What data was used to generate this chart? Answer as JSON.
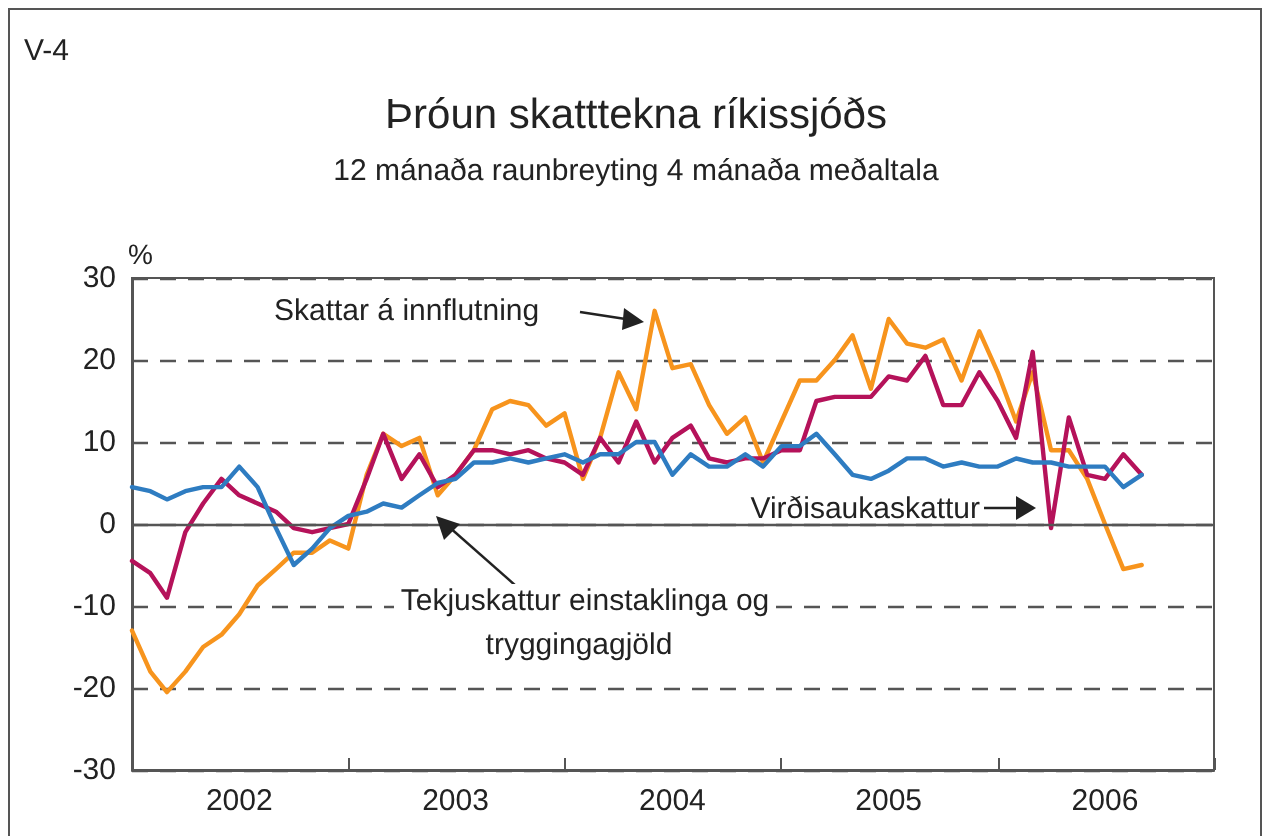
{
  "chart_data": {
    "type": "line",
    "title": "Þróun skatttekna ríkissjóðs",
    "subtitle": "12 mánaða raunbreyting 4 mánaða meðaltala",
    "ylabel": "%",
    "annotations": [
      "V-4"
    ],
    "x": [
      "2002-01",
      "2002-02",
      "2002-03",
      "2002-04",
      "2002-05",
      "2002-06",
      "2002-07",
      "2002-08",
      "2002-09",
      "2002-10",
      "2002-11",
      "2002-12",
      "2003-01",
      "2003-02",
      "2003-03",
      "2003-04",
      "2003-05",
      "2003-06",
      "2003-07",
      "2003-08",
      "2003-09",
      "2003-10",
      "2003-11",
      "2003-12",
      "2004-01",
      "2004-02",
      "2004-03",
      "2004-04",
      "2004-05",
      "2004-06",
      "2004-07",
      "2004-08",
      "2004-09",
      "2004-10",
      "2004-11",
      "2004-12",
      "2005-01",
      "2005-02",
      "2005-03",
      "2005-04",
      "2005-05",
      "2005-06",
      "2005-07",
      "2005-08",
      "2005-09",
      "2005-10",
      "2005-11",
      "2005-12",
      "2006-01",
      "2006-02",
      "2006-03",
      "2006-04",
      "2006-05",
      "2006-06",
      "2006-07",
      "2006-08",
      "2006-09"
    ],
    "series": [
      {
        "name": "Skattar á innflutning",
        "color": "#f7941d",
        "values": [
          -13,
          -18,
          -20.5,
          -18,
          -15,
          -13.5,
          -11,
          -7.5,
          -5.5,
          -3.5,
          -3.5,
          -2,
          -3,
          6,
          11,
          9.5,
          10.5,
          3.5,
          6,
          9,
          14,
          15,
          14.5,
          12,
          13.5,
          5.5,
          10.5,
          18.5,
          14,
          26,
          19,
          19.5,
          14.5,
          11,
          13,
          7.5,
          12.5,
          17.5,
          17.5,
          20,
          23,
          16.5,
          25,
          22,
          21.5,
          22.5,
          17.5,
          23.5,
          18.5,
          12.5,
          18.5,
          9,
          9,
          5.5,
          0,
          -5.5,
          -5
        ]
      },
      {
        "name": "Virðisaukaskattur",
        "color": "#b5125a",
        "values": [
          -4.5,
          -6,
          -9,
          -1,
          2.5,
          5.5,
          3.5,
          2.5,
          1.5,
          -0.5,
          -1,
          -0.5,
          0,
          5.5,
          11,
          5.5,
          8.5,
          4.5,
          6,
          9,
          9,
          8.5,
          9,
          8,
          7.5,
          6,
          10.5,
          7.5,
          12.5,
          7.5,
          10.5,
          12,
          8,
          7.5,
          8,
          8,
          9,
          9,
          15,
          15.5,
          15.5,
          15.5,
          18,
          17.5,
          20.5,
          14.5,
          14.5,
          18.5,
          15,
          10.5,
          21,
          -0.5,
          13,
          6,
          5.5,
          8.5,
          6
        ]
      },
      {
        "name": "Tekjuskattur einstaklinga og tryggingagjöld",
        "color": "#2e7cc1",
        "values": [
          4.5,
          4,
          3,
          4,
          4.5,
          4.5,
          7,
          4.5,
          -0.5,
          -5,
          -3,
          -0.5,
          1,
          1.5,
          2.5,
          2,
          3.5,
          5,
          5.5,
          7.5,
          7.5,
          8,
          7.5,
          8,
          8.5,
          7.5,
          8.5,
          8.5,
          10,
          10,
          6,
          8.5,
          7,
          7,
          8.5,
          7,
          9.5,
          9.5,
          11,
          8.5,
          6,
          5.5,
          6.5,
          8,
          8,
          7,
          7.5,
          7,
          7,
          8,
          7.5,
          7.5,
          7,
          7,
          7,
          4.5,
          6
        ]
      }
    ],
    "xlim": [
      "2002-01",
      "2007-01"
    ],
    "xticks": [
      {
        "value": "2002-01",
        "label": null
      },
      {
        "value": "2002-07",
        "label": "2002"
      },
      {
        "value": "2003-01",
        "label": null
      },
      {
        "value": "2003-07",
        "label": "2003"
      },
      {
        "value": "2004-01",
        "label": null
      },
      {
        "value": "2004-07",
        "label": "2004"
      },
      {
        "value": "2005-01",
        "label": null
      },
      {
        "value": "2005-07",
        "label": "2005"
      },
      {
        "value": "2006-01",
        "label": null
      },
      {
        "value": "2006-07",
        "label": "2006"
      },
      {
        "value": "2007-01",
        "label": null
      }
    ],
    "ylim": [
      -30,
      30
    ],
    "yticks": [
      -30,
      -20,
      -10,
      0,
      10,
      20,
      30
    ],
    "ref_lines": [
      {
        "axis": "y",
        "value": 0,
        "color": "#555555",
        "line_style": "solid"
      }
    ],
    "grid": "y",
    "legend": false,
    "line_style": "solid"
  }
}
